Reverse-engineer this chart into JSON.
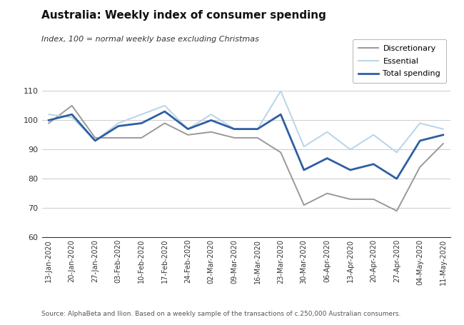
{
  "title": "Australia: Weekly index of consumer spending",
  "subtitle": "Index, 100 = normal weekly base excluding Christmas",
  "source": "Source: AlphaBeta and Ilion. Based on a weekly sample of the transactions of c.250,000 Australian consumers.",
  "x_labels": [
    "13-Jan-2020",
    "20-Jan-2020",
    "27-Jan-2020",
    "03-Feb-2020",
    "10-Feb-2020",
    "17-Feb-2020",
    "24-Feb-2020",
    "02-Mar-2020",
    "09-Mar-2020",
    "16-Mar-2020",
    "23-Mar-2020",
    "30-Mar-2020",
    "06-Apr-2020",
    "13-Apr-2020",
    "20-Apr-2020",
    "27-Apr-2020",
    "04-May-2020",
    "11-May-2020"
  ],
  "discretionary": [
    99,
    105,
    94,
    94,
    94,
    99,
    95,
    96,
    94,
    94,
    89,
    71,
    75,
    73,
    73,
    69,
    84,
    92
  ],
  "essential": [
    102,
    101,
    93,
    99,
    102,
    105,
    97,
    102,
    97,
    97,
    110,
    91,
    96,
    90,
    95,
    89,
    99,
    97
  ],
  "total_spending": [
    100,
    102,
    93,
    98,
    99,
    103,
    97,
    100,
    97,
    97,
    102,
    83,
    87,
    83,
    85,
    80,
    93,
    95
  ],
  "ylim": [
    60,
    110
  ],
  "yticks": [
    60,
    70,
    80,
    90,
    100,
    110
  ],
  "discretionary_color": "#999999",
  "essential_color": "#b8d4e8",
  "total_color": "#2e5fa3",
  "background_color": "#ffffff",
  "legend_labels": [
    "Discretionary",
    "Essential",
    "Total spending"
  ]
}
